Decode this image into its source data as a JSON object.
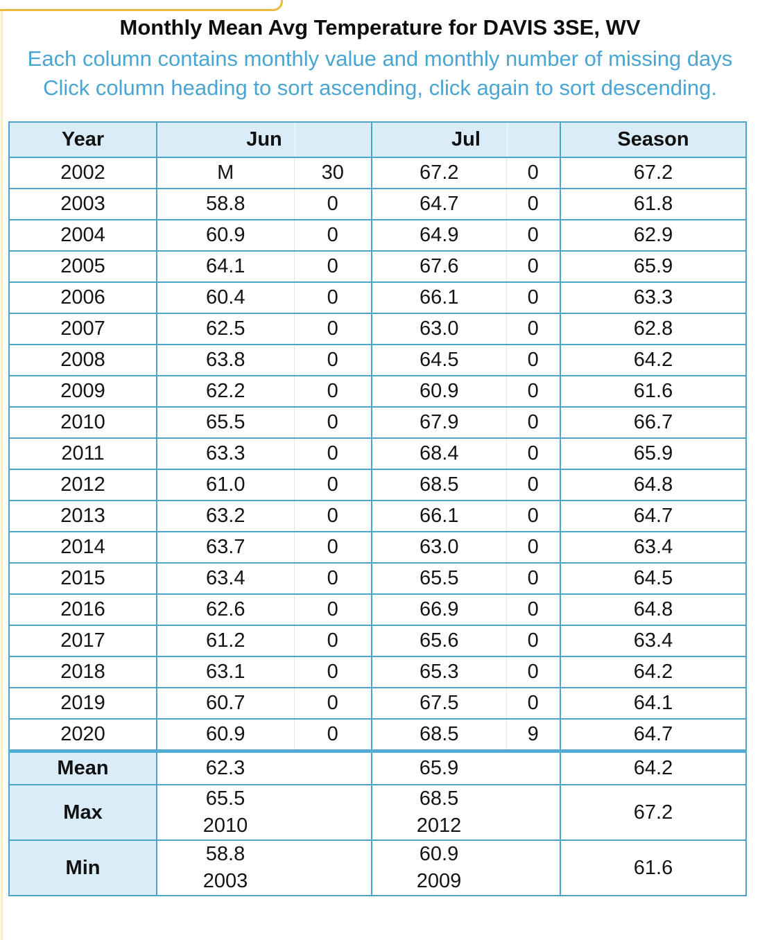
{
  "page": {
    "title": "Monthly Mean Avg Temperature for DAVIS 3SE, WV",
    "subtitle_line1": "Each column contains monthly value and monthly number of missing days",
    "subtitle_line2": "Click column heading to sort ascending, click again to sort descending."
  },
  "colors": {
    "table_border_blue": "#4ba4c9",
    "thick_separator_blue": "#52abd4",
    "header_bg_blue": "#d9ecf8",
    "subtitle_blue": "#49a5d2",
    "tab_outline_yellow": "#eab93d",
    "left_edge_yellow": "#f7eebb"
  },
  "table": {
    "columns": [
      "Year",
      "Jun",
      "Jul",
      "Season"
    ],
    "rows": [
      {
        "year": "2002",
        "jun": "M",
        "jun_missing": "30",
        "jul": "67.2",
        "jul_missing": "0",
        "season": "67.2"
      },
      {
        "year": "2003",
        "jun": "58.8",
        "jun_missing": "0",
        "jul": "64.7",
        "jul_missing": "0",
        "season": "61.8"
      },
      {
        "year": "2004",
        "jun": "60.9",
        "jun_missing": "0",
        "jul": "64.9",
        "jul_missing": "0",
        "season": "62.9"
      },
      {
        "year": "2005",
        "jun": "64.1",
        "jun_missing": "0",
        "jul": "67.6",
        "jul_missing": "0",
        "season": "65.9"
      },
      {
        "year": "2006",
        "jun": "60.4",
        "jun_missing": "0",
        "jul": "66.1",
        "jul_missing": "0",
        "season": "63.3"
      },
      {
        "year": "2007",
        "jun": "62.5",
        "jun_missing": "0",
        "jul": "63.0",
        "jul_missing": "0",
        "season": "62.8"
      },
      {
        "year": "2008",
        "jun": "63.8",
        "jun_missing": "0",
        "jul": "64.5",
        "jul_missing": "0",
        "season": "64.2"
      },
      {
        "year": "2009",
        "jun": "62.2",
        "jun_missing": "0",
        "jul": "60.9",
        "jul_missing": "0",
        "season": "61.6"
      },
      {
        "year": "2010",
        "jun": "65.5",
        "jun_missing": "0",
        "jul": "67.9",
        "jul_missing": "0",
        "season": "66.7"
      },
      {
        "year": "2011",
        "jun": "63.3",
        "jun_missing": "0",
        "jul": "68.4",
        "jul_missing": "0",
        "season": "65.9"
      },
      {
        "year": "2012",
        "jun": "61.0",
        "jun_missing": "0",
        "jul": "68.5",
        "jul_missing": "0",
        "season": "64.8"
      },
      {
        "year": "2013",
        "jun": "63.2",
        "jun_missing": "0",
        "jul": "66.1",
        "jul_missing": "0",
        "season": "64.7"
      },
      {
        "year": "2014",
        "jun": "63.7",
        "jun_missing": "0",
        "jul": "63.0",
        "jul_missing": "0",
        "season": "63.4"
      },
      {
        "year": "2015",
        "jun": "63.4",
        "jun_missing": "0",
        "jul": "65.5",
        "jul_missing": "0",
        "season": "64.5"
      },
      {
        "year": "2016",
        "jun": "62.6",
        "jun_missing": "0",
        "jul": "66.9",
        "jul_missing": "0",
        "season": "64.8"
      },
      {
        "year": "2017",
        "jun": "61.2",
        "jun_missing": "0",
        "jul": "65.6",
        "jul_missing": "0",
        "season": "63.4"
      },
      {
        "year": "2018",
        "jun": "63.1",
        "jun_missing": "0",
        "jul": "65.3",
        "jul_missing": "0",
        "season": "64.2"
      },
      {
        "year": "2019",
        "jun": "60.7",
        "jun_missing": "0",
        "jul": "67.5",
        "jul_missing": "0",
        "season": "64.1"
      },
      {
        "year": "2020",
        "jun": "60.9",
        "jun_missing": "0",
        "jul": "68.5",
        "jul_missing": "9",
        "season": "64.7"
      }
    ],
    "summary": {
      "mean": {
        "label": "Mean",
        "jun": "62.3",
        "jul": "65.9",
        "season": "64.2"
      },
      "max": {
        "label": "Max",
        "jun": "65.5",
        "jun_year": "2010",
        "jul": "68.5",
        "jul_year": "2012",
        "season": "67.2"
      },
      "min": {
        "label": "Min",
        "jun": "58.8",
        "jun_year": "2003",
        "jul": "60.9",
        "jul_year": "2009",
        "season": "61.6"
      }
    }
  }
}
